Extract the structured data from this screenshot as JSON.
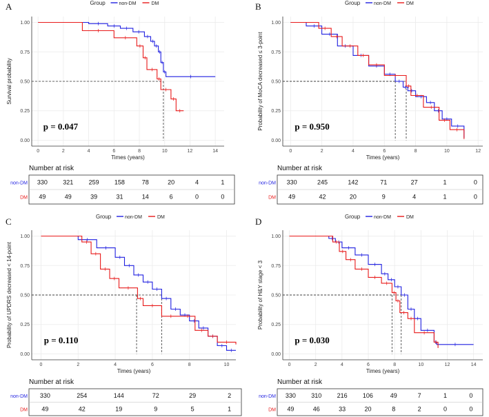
{
  "colors": {
    "non_dm": "#1f1fe0",
    "dm": "#e81919"
  },
  "legend": {
    "title": "Group",
    "non_dm": "non-DM",
    "dm": "DM"
  },
  "risk_title": "Number at risk",
  "chart_data": [
    {
      "panel": "A",
      "type": "line",
      "xlabel": "Times (years)",
      "ylabel": "Survival probability",
      "xlim": [
        -0.5,
        14.7
      ],
      "ylim": [
        -0.05,
        1.05
      ],
      "xticks": [
        0,
        2,
        4,
        6,
        8,
        10,
        12,
        14
      ],
      "yticks": [
        "0.00",
        "0.25",
        "0.50",
        "0.75",
        "1.00"
      ],
      "p_value": "p = 0.047",
      "series": [
        {
          "name": "non-DM",
          "steps": [
            [
              0,
              1
            ],
            [
              4,
              0.99
            ],
            [
              5.5,
              0.97
            ],
            [
              6.5,
              0.95
            ],
            [
              7.5,
              0.92
            ],
            [
              8.4,
              0.88
            ],
            [
              8.9,
              0.84
            ],
            [
              9.2,
              0.8
            ],
            [
              9.5,
              0.75
            ],
            [
              9.7,
              0.66
            ],
            [
              9.9,
              0.58
            ],
            [
              10.1,
              0.54
            ],
            [
              14,
              0.54
            ]
          ]
        },
        {
          "name": "DM",
          "steps": [
            [
              0,
              1
            ],
            [
              3.5,
              0.93
            ],
            [
              6,
              0.87
            ],
            [
              7.8,
              0.8
            ],
            [
              8.3,
              0.7
            ],
            [
              8.6,
              0.6
            ],
            [
              9.4,
              0.52
            ],
            [
              9.7,
              0.43
            ],
            [
              10.5,
              0.35
            ],
            [
              10.9,
              0.25
            ],
            [
              11.5,
              0.25
            ]
          ]
        }
      ],
      "median_lines": [
        {
          "x": 9.9,
          "y": 0.5
        }
      ],
      "risk_times": [
        0,
        2,
        4,
        6,
        8,
        10,
        12,
        14
      ],
      "risk_rows": [
        {
          "label": "non-DM",
          "values": [
            "330",
            "321",
            "259",
            "158",
            "78",
            "20",
            "4",
            "1"
          ]
        },
        {
          "label": "DM",
          "values": [
            "49",
            "49",
            "39",
            "31",
            "14",
            "6",
            "0",
            "0"
          ]
        }
      ]
    },
    {
      "panel": "B",
      "type": "line",
      "xlabel": "Times (years)",
      "ylabel": "Probability of MoCA decreased ≤ 3-point",
      "xlim": [
        -0.5,
        12.3
      ],
      "ylim": [
        -0.05,
        1.05
      ],
      "xticks": [
        0,
        2,
        4,
        6,
        8,
        10,
        12
      ],
      "yticks": [
        "0.00",
        "0.25",
        "0.50",
        "0.75",
        "1.00"
      ],
      "p_value": "p = 0.950",
      "series": [
        {
          "name": "non-DM",
          "steps": [
            [
              0,
              1
            ],
            [
              1,
              0.97
            ],
            [
              2,
              0.9
            ],
            [
              3,
              0.8
            ],
            [
              4,
              0.72
            ],
            [
              5,
              0.63
            ],
            [
              6,
              0.56
            ],
            [
              6.7,
              0.5
            ],
            [
              7.2,
              0.45
            ],
            [
              7.5,
              0.42
            ],
            [
              8,
              0.37
            ],
            [
              8.7,
              0.32
            ],
            [
              9.2,
              0.25
            ],
            [
              9.7,
              0.18
            ],
            [
              10.3,
              0.12
            ],
            [
              11.1,
              0.02
            ]
          ]
        },
        {
          "name": "DM",
          "steps": [
            [
              0,
              1
            ],
            [
              1.8,
              0.95
            ],
            [
              2.6,
              0.88
            ],
            [
              3.3,
              0.8
            ],
            [
              4.3,
              0.72
            ],
            [
              5,
              0.64
            ],
            [
              6,
              0.55
            ],
            [
              7.4,
              0.46
            ],
            [
              7.7,
              0.38
            ],
            [
              8.5,
              0.28
            ],
            [
              9.5,
              0.17
            ],
            [
              10.2,
              0.09
            ],
            [
              11.1,
              0.01
            ]
          ]
        }
      ],
      "median_lines": [
        {
          "x": 6.7,
          "y": 0.5
        },
        {
          "x": 7.4,
          "y": 0.5
        }
      ],
      "risk_times": [
        0,
        2,
        4,
        6,
        8,
        10,
        12
      ],
      "risk_rows": [
        {
          "label": "non-DM",
          "values": [
            "330",
            "245",
            "142",
            "71",
            "27",
            "1",
            "0"
          ]
        },
        {
          "label": "DM",
          "values": [
            "49",
            "42",
            "20",
            "9",
            "4",
            "1",
            "0"
          ]
        }
      ]
    },
    {
      "panel": "C",
      "type": "line",
      "xlabel": "Times (years)",
      "ylabel": "Probability of UPDRS decreased < 14-point",
      "xlim": [
        -0.5,
        10.5
      ],
      "ylim": [
        -0.05,
        1.05
      ],
      "xticks": [
        0,
        2,
        4,
        6,
        8,
        10
      ],
      "yticks": [
        "0.00",
        "0.25",
        "0.50",
        "0.75",
        "1.00"
      ],
      "p_value": "p = 0.110",
      "series": [
        {
          "name": "non-DM",
          "steps": [
            [
              1,
              1
            ],
            [
              2,
              0.97
            ],
            [
              3,
              0.9
            ],
            [
              4,
              0.82
            ],
            [
              4.5,
              0.75
            ],
            [
              5,
              0.67
            ],
            [
              5.5,
              0.61
            ],
            [
              6,
              0.55
            ],
            [
              6.5,
              0.47
            ],
            [
              7,
              0.38
            ],
            [
              7.5,
              0.33
            ],
            [
              8,
              0.28
            ],
            [
              8.5,
              0.22
            ],
            [
              9,
              0.15
            ],
            [
              9.5,
              0.07
            ],
            [
              10,
              0.03
            ],
            [
              10.5,
              0.03
            ]
          ]
        },
        {
          "name": "DM",
          "steps": [
            [
              0,
              1
            ],
            [
              2.2,
              0.95
            ],
            [
              2.7,
              0.85
            ],
            [
              3.2,
              0.72
            ],
            [
              3.7,
              0.64
            ],
            [
              4.2,
              0.56
            ],
            [
              5.2,
              0.47
            ],
            [
              5.5,
              0.41
            ],
            [
              6.5,
              0.32
            ],
            [
              7.5,
              0.32
            ],
            [
              8.3,
              0.2
            ],
            [
              9,
              0.15
            ],
            [
              9.5,
              0.1
            ],
            [
              10.5,
              0.08
            ]
          ]
        }
      ],
      "median_lines": [
        {
          "x": 5.15,
          "y": 0.5
        },
        {
          "x": 6.5,
          "y": 0.5
        }
      ],
      "risk_times": [
        0,
        2,
        4,
        6,
        8,
        10
      ],
      "risk_rows": [
        {
          "label": "non-DM",
          "values": [
            "330",
            "254",
            "144",
            "72",
            "29",
            "2"
          ]
        },
        {
          "label": "DM",
          "values": [
            "49",
            "42",
            "19",
            "9",
            "5",
            "1"
          ]
        }
      ]
    },
    {
      "panel": "D",
      "type": "line",
      "xlabel": "Times (years)",
      "ylabel": "Probability of H&Y stage < 3",
      "xlim": [
        -0.5,
        14.7
      ],
      "ylim": [
        -0.05,
        1.05
      ],
      "xticks": [
        0,
        2,
        4,
        6,
        8,
        10,
        12,
        14
      ],
      "yticks": [
        "0.00",
        "0.25",
        "0.50",
        "0.75",
        "1.00"
      ],
      "p_value": "p = 0.030",
      "series": [
        {
          "name": "non-DM",
          "steps": [
            [
              0,
              1
            ],
            [
              3,
              0.98
            ],
            [
              3.5,
              0.95
            ],
            [
              4,
              0.9
            ],
            [
              5,
              0.84
            ],
            [
              6,
              0.76
            ],
            [
              7,
              0.68
            ],
            [
              7.5,
              0.63
            ],
            [
              8,
              0.57
            ],
            [
              8.5,
              0.5
            ],
            [
              9,
              0.38
            ],
            [
              9.5,
              0.3
            ],
            [
              10,
              0.2
            ],
            [
              11,
              0.1
            ],
            [
              11.2,
              0.08
            ],
            [
              14,
              0.08
            ]
          ]
        },
        {
          "name": "DM",
          "steps": [
            [
              0,
              1
            ],
            [
              3.3,
              0.95
            ],
            [
              3.8,
              0.87
            ],
            [
              4.3,
              0.8
            ],
            [
              5,
              0.72
            ],
            [
              6,
              0.65
            ],
            [
              7,
              0.6
            ],
            [
              7.8,
              0.52
            ],
            [
              8.1,
              0.45
            ],
            [
              8.4,
              0.35
            ],
            [
              9,
              0.3
            ],
            [
              9.5,
              0.18
            ],
            [
              11,
              0.1
            ],
            [
              11.3,
              0.05
            ]
          ]
        }
      ],
      "median_lines": [
        {
          "x": 7.8,
          "y": 0.5
        },
        {
          "x": 8.5,
          "y": 0.5
        }
      ],
      "risk_times": [
        0,
        2,
        4,
        6,
        8,
        10,
        12,
        14
      ],
      "risk_rows": [
        {
          "label": "non-DM",
          "values": [
            "330",
            "310",
            "216",
            "106",
            "49",
            "7",
            "1",
            "0"
          ]
        },
        {
          "label": "DM",
          "values": [
            "49",
            "46",
            "33",
            "20",
            "8",
            "2",
            "0",
            "0"
          ]
        }
      ]
    }
  ]
}
